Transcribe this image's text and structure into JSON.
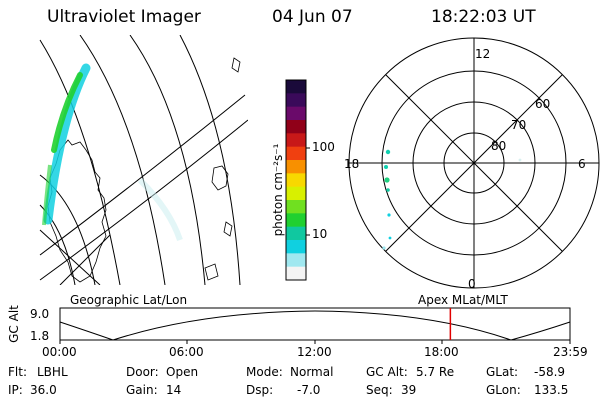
{
  "header": {
    "instrument": "Ultraviolet Imager",
    "date": "04 Jun 07",
    "time": "18:22:03 UT"
  },
  "colorbar": {
    "label": "photon cm⁻²s⁻¹",
    "ticks": [
      "100",
      "10"
    ],
    "colors": [
      "#1a0a3a",
      "#3a0a5a",
      "#6a0a6a",
      "#900018",
      "#c81818",
      "#f04010",
      "#f89000",
      "#f8d800",
      "#d8f000",
      "#70e020",
      "#20d030",
      "#10c8a0",
      "#10d0e0",
      "#a0e8f0",
      "#f4f4f4"
    ]
  },
  "polar_plot": {
    "mlt_labels": {
      "top": "12",
      "left": "18",
      "right": "6",
      "bottom": "0"
    },
    "lat_labels": [
      "60",
      "70",
      "80"
    ]
  },
  "timeline": {
    "ylabel": "GC Alt",
    "y_ticks": [
      "9.0",
      "1.8"
    ],
    "left_title": "Geographic Lat/Lon",
    "right_title": "Apex MLat/MLT",
    "x_ticks": [
      "00:00",
      "06:00",
      "12:00",
      "18:00",
      "23:59"
    ],
    "marker_color": "#e00000",
    "marker_time_hours": 18.37
  },
  "info": {
    "filter_label": "Flt:",
    "filter_value": "LBHL",
    "ip_label": "IP:",
    "ip_value": "36.0",
    "door_label": "Door:",
    "door_value": "Open",
    "gain_label": "Gain:",
    "gain_value": "14",
    "mode_label": "Mode:",
    "mode_value": "Normal",
    "dsp_label": "Dsp:",
    "dsp_value": "-7.0",
    "gcalt_label": "GC Alt:",
    "gcalt_value": "5.7 Re",
    "seq_label": "Seq:",
    "seq_value": "39",
    "glat_label": "GLat:",
    "glat_value": "-58.9",
    "glon_label": "GLon:",
    "glon_value": "133.5"
  }
}
